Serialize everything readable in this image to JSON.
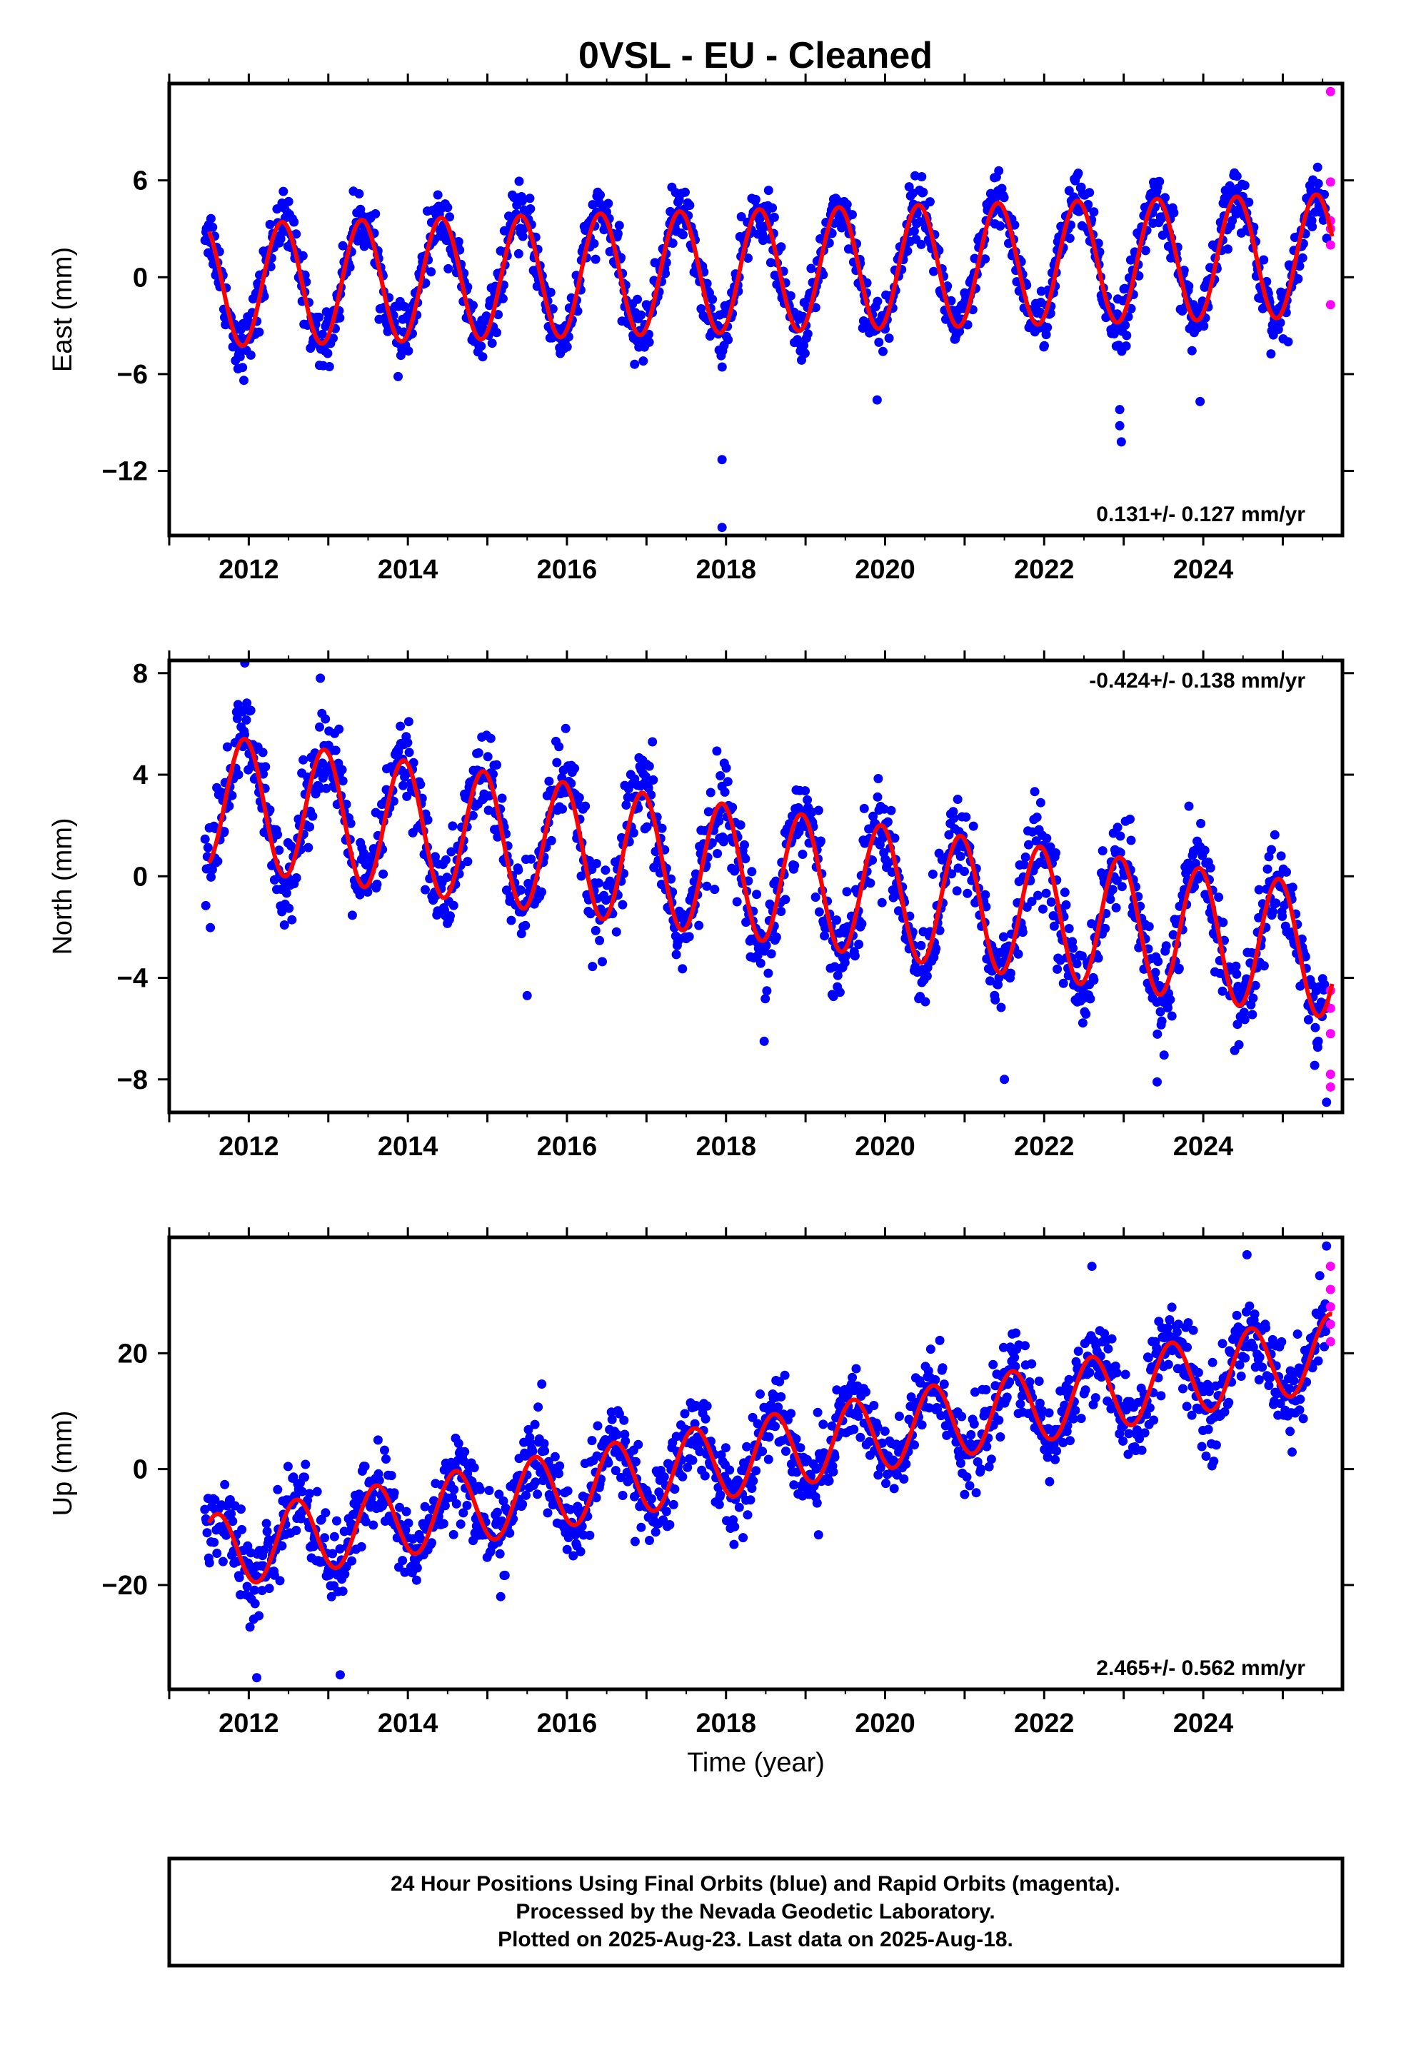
{
  "title": "0VSL  - EU - Cleaned",
  "colors": {
    "final_orbits": "#0000ff",
    "rapid_orbits": "#ff00ff",
    "model": "#ff0000",
    "axes": "#000000"
  },
  "footer": {
    "line1": "24 Hour Positions Using Final Orbits (blue) and Rapid Orbits (magenta).",
    "line2": "Processed by the Nevada Geodetic Laboratory.",
    "line3": "Plotted on 2025-Aug-23. Last data on 2025-Aug-18."
  },
  "chart_data": [
    {
      "type": "scatter",
      "component": "east",
      "ylabel": "East (mm)",
      "xlabel": "",
      "xlim": [
        2011.0,
        2025.75
      ],
      "ylim": [
        -16,
        12
      ],
      "x_ticks": [
        "2012",
        "2014",
        "2016",
        "2018",
        "2020",
        "2022",
        "2024"
      ],
      "y_ticks": [
        "6",
        "0",
        "−6",
        "−12"
      ],
      "rate_text": "0.131+/- 0.127 mm/yr",
      "rate_position": "bottom-right",
      "model": {
        "offset_at_2011_5": -0.5,
        "trend_mm_per_yr": 0.131,
        "annual_amplitude": 3.8,
        "annual_peak_phase_yr": 0.42,
        "ends": [
          2011.5,
          2025.62
        ]
      },
      "data_span": [
        2011.45,
        2025.55
      ],
      "point_scatter_mm": 0.9,
      "outliers": [
        [
          2017.95,
          -15.5
        ],
        [
          2017.95,
          -11.3
        ],
        [
          2022.97,
          -10.2
        ],
        [
          2022.95,
          -9.2
        ],
        [
          2022.95,
          -8.2
        ],
        [
          2019.9,
          -7.6
        ],
        [
          2023.96,
          -7.7
        ]
      ],
      "rapid_points": [
        [
          2025.6,
          11.5
        ],
        [
          2025.6,
          5.9
        ],
        [
          2025.6,
          3.5
        ],
        [
          2025.6,
          3.0
        ],
        [
          2025.6,
          2.0
        ],
        [
          2025.6,
          -1.7
        ]
      ]
    },
    {
      "type": "scatter",
      "component": "north",
      "ylabel": "North (mm)",
      "xlabel": "",
      "xlim": [
        2011.0,
        2025.75
      ],
      "ylim": [
        -9.3,
        8.5
      ],
      "x_ticks": [
        "2012",
        "2014",
        "2016",
        "2018",
        "2020",
        "2022",
        "2024"
      ],
      "y_ticks": [
        "8",
        "4",
        "0",
        "−4",
        "−8"
      ],
      "rate_text": "-0.424+/- 0.138 mm/yr",
      "rate_position": "top-right",
      "model": {
        "offset_at_2011_5": 3.0,
        "trend_mm_per_yr": -0.424,
        "annual_amplitude": 2.6,
        "annual_peak_phase_yr": 0.95,
        "ends": [
          2011.5,
          2025.62
        ]
      },
      "data_span": [
        2011.45,
        2025.55
      ],
      "point_scatter_mm": 0.9,
      "outliers": [
        [
          2011.95,
          8.4
        ],
        [
          2012.9,
          7.8
        ],
        [
          2015.5,
          -4.7
        ],
        [
          2018.48,
          -6.5
        ],
        [
          2021.5,
          -8.0
        ],
        [
          2023.42,
          -8.1
        ],
        [
          2025.55,
          -8.9
        ]
      ],
      "rapid_points": [
        [
          2025.6,
          -4.5
        ],
        [
          2025.6,
          -5.2
        ],
        [
          2025.6,
          -6.2
        ],
        [
          2025.6,
          -7.8
        ],
        [
          2025.6,
          -8.3
        ]
      ]
    },
    {
      "type": "scatter",
      "component": "up",
      "ylabel": "Up (mm)",
      "xlabel": "Time (year)",
      "xlim": [
        2011.0,
        2025.75
      ],
      "ylim": [
        -38,
        40
      ],
      "x_ticks": [
        "2012",
        "2014",
        "2016",
        "2018",
        "2020",
        "2022",
        "2024"
      ],
      "y_ticks": [
        "20",
        "0",
        "−20"
      ],
      "rate_text": "2.465+/- 0.562 mm/yr",
      "rate_position": "bottom-right",
      "model": {
        "offset_at_2011_5": -14.5,
        "trend_mm_per_yr": 2.465,
        "annual_amplitude": 6.5,
        "annual_peak_phase_yr": 0.6,
        "ends": [
          2011.5,
          2025.62
        ]
      },
      "data_span": [
        2011.45,
        2025.55
      ],
      "point_scatter_mm": 3.5,
      "outliers": [
        [
          2012.1,
          -36.0
        ],
        [
          2013.15,
          -35.5
        ],
        [
          2025.55,
          38.5
        ],
        [
          2022.6,
          35.0
        ],
        [
          2024.55,
          37.0
        ]
      ],
      "rapid_points": [
        [
          2025.6,
          35.0
        ],
        [
          2025.6,
          31.0
        ],
        [
          2025.6,
          28.0
        ],
        [
          2025.6,
          25.0
        ],
        [
          2025.6,
          22.0
        ]
      ]
    }
  ]
}
